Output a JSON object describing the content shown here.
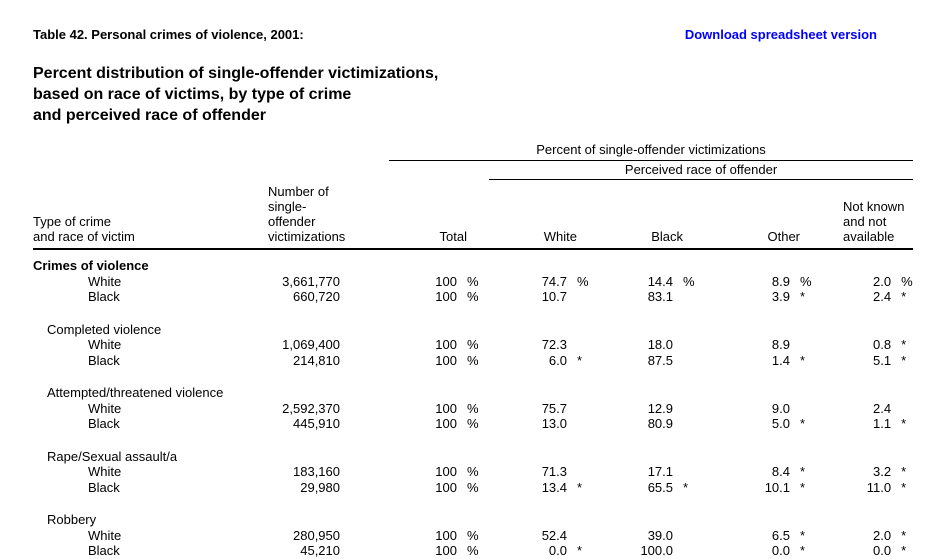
{
  "page": {
    "table_label": "Table 42. Personal crimes of violence, 2001:",
    "download_link": "Download spreadsheet version",
    "link_color": "#0000ff",
    "title": "Percent distribution of single-offender victimizations,\nbased on race of victims, by type of crime\nand perceived race of offender"
  },
  "table": {
    "span_header_1": "Percent of single-offender victimizations",
    "span_header_2": "Perceived race of offender",
    "stub_header": "Type of crime\nand race of victim",
    "number_header": "Number of\nsingle-offender\nvictimizations",
    "percent_headers": [
      "Total",
      "White",
      "Black",
      "Other",
      "Not known\nand not\navailable"
    ],
    "groups": [
      {
        "label": "Crimes of violence",
        "bold": true,
        "indent": 0,
        "rows": [
          {
            "label": "White",
            "number": "3,661,770",
            "cells": [
              [
                "100",
                "%"
              ],
              [
                "74.7",
                "%"
              ],
              [
                "14.4",
                "%"
              ],
              [
                "8.9",
                "%"
              ],
              [
                "2.0",
                "%"
              ]
            ]
          },
          {
            "label": "Black",
            "number": "660,720",
            "cells": [
              [
                "100",
                "%"
              ],
              [
                "10.7",
                ""
              ],
              [
                "83.1",
                ""
              ],
              [
                "3.9",
                "*"
              ],
              [
                "2.4",
                "*"
              ]
            ]
          }
        ]
      },
      {
        "label": "Completed violence",
        "bold": false,
        "indent": 1,
        "rows": [
          {
            "label": "White",
            "number": "1,069,400",
            "cells": [
              [
                "100",
                "%"
              ],
              [
                "72.3",
                ""
              ],
              [
                "18.0",
                ""
              ],
              [
                "8.9",
                ""
              ],
              [
                "0.8",
                "*"
              ]
            ]
          },
          {
            "label": "Black",
            "number": "214,810",
            "cells": [
              [
                "100",
                "%"
              ],
              [
                "6.0",
                "*"
              ],
              [
                "87.5",
                ""
              ],
              [
                "1.4",
                "*"
              ],
              [
                "5.1",
                "*"
              ]
            ]
          }
        ]
      },
      {
        "label": "Attempted/threatened violence",
        "bold": false,
        "indent": 1,
        "rows": [
          {
            "label": "White",
            "number": "2,592,370",
            "cells": [
              [
                "100",
                "%"
              ],
              [
                "75.7",
                ""
              ],
              [
                "12.9",
                ""
              ],
              [
                "9.0",
                ""
              ],
              [
                "2.4",
                ""
              ]
            ]
          },
          {
            "label": "Black",
            "number": "445,910",
            "cells": [
              [
                "100",
                "%"
              ],
              [
                "13.0",
                ""
              ],
              [
                "80.9",
                ""
              ],
              [
                "5.0",
                "*"
              ],
              [
                "1.1",
                "*"
              ]
            ]
          }
        ]
      },
      {
        "label": "Rape/Sexual assault/a",
        "bold": false,
        "indent": 1,
        "rows": [
          {
            "label": "White",
            "number": "183,160",
            "cells": [
              [
                "100",
                "%"
              ],
              [
                "71.3",
                ""
              ],
              [
                "17.1",
                ""
              ],
              [
                "8.4",
                "*"
              ],
              [
                "3.2",
                "*"
              ]
            ]
          },
          {
            "label": "Black",
            "number": "29,980",
            "cells": [
              [
                "100",
                "%"
              ],
              [
                "13.4",
                "*"
              ],
              [
                "65.5",
                "*"
              ],
              [
                "10.1",
                "*"
              ],
              [
                "11.0",
                "*"
              ]
            ]
          }
        ]
      },
      {
        "label": "Robbery",
        "bold": false,
        "indent": 1,
        "rows": [
          {
            "label": "White",
            "number": "280,950",
            "cells": [
              [
                "100",
                "%"
              ],
              [
                "52.4",
                ""
              ],
              [
                "39.0",
                ""
              ],
              [
                "6.5",
                "*"
              ],
              [
                "2.0",
                "*"
              ]
            ]
          },
          {
            "label": "Black",
            "number": "45,210",
            "cells": [
              [
                "100",
                "%"
              ],
              [
                "0.0",
                "*"
              ],
              [
                "100.0",
                ""
              ],
              [
                "0.0",
                "*"
              ],
              [
                "0.0",
                "*"
              ]
            ]
          }
        ]
      }
    ]
  }
}
